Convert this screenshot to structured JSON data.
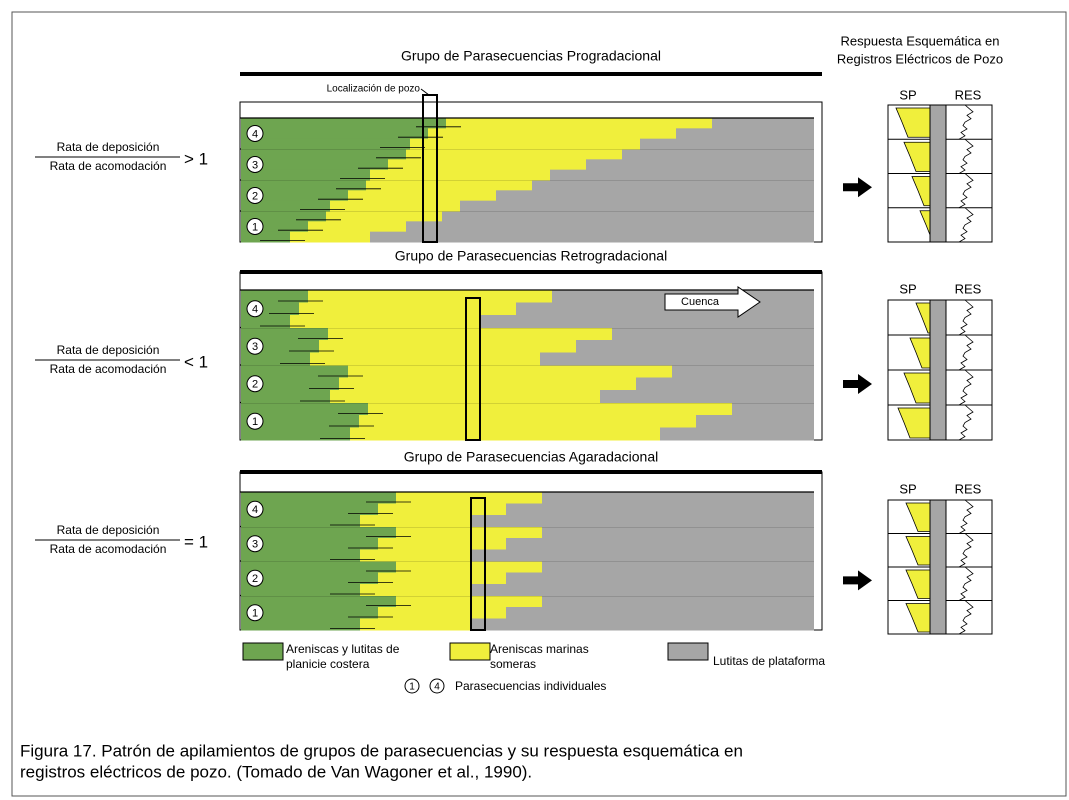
{
  "log_header": [
    "Respuesta Esquemática en",
    "Registros Eléctricos de Pozo"
  ],
  "panels": [
    {
      "title": "Grupo de Parasecuencias Progradacional",
      "numerator": "Rata de deposición",
      "denominator": "Rata de acomodación",
      "relation": "> 1",
      "well_label": "Localización de pozo",
      "log_labels": [
        "SP",
        "RES"
      ],
      "parasequences": [
        "4",
        "3",
        "2",
        "1"
      ]
    },
    {
      "title": "Grupo de Parasecuencias Retrogradacional",
      "numerator": "Rata de deposición",
      "denominator": "Rata de acomodación",
      "relation": "< 1",
      "arrow_label": "Cuenca",
      "log_labels": [
        "SP",
        "RES"
      ],
      "parasequences": [
        "4",
        "3",
        "2",
        "1"
      ]
    },
    {
      "title": "Grupo de Parasecuencias Agaradacional",
      "numerator": "Rata de deposición",
      "denominator": "Rata de acomodación",
      "relation": "= 1",
      "log_labels": [
        "SP",
        "RES"
      ],
      "parasequences": [
        "4",
        "3",
        "2",
        "1"
      ]
    }
  ],
  "legend": [
    {
      "lines": [
        "Areniscas y lutitas de",
        "planicie costera"
      ]
    },
    {
      "lines": [
        "Areniscas marinas",
        "someras"
      ]
    },
    {
      "lines": [
        "Lutitas de plataforma"
      ]
    }
  ],
  "legend_note": {
    "symbols": [
      "1",
      "4"
    ],
    "text": "Parasecuencias individuales"
  },
  "caption": [
    "Figura 17.  Patrón de apilamientos de grupos de parasecuencias y su respuesta esquemática en",
    "registros eléctricos de pozo. (Tomado de Van Wagoner et al., 1990)."
  ]
}
